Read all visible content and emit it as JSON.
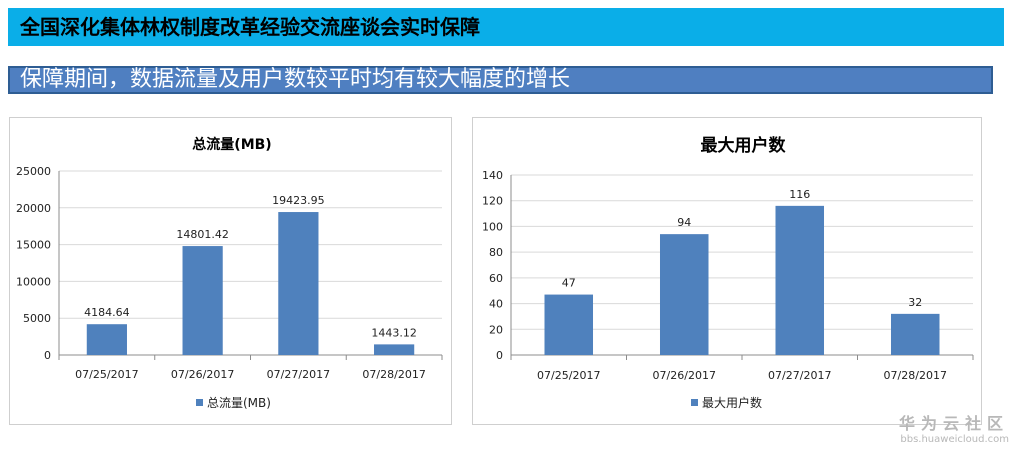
{
  "header": {
    "title": "全国深化集体林权制度改革经验交流座谈会实时保障",
    "subtitle": "保障期间，数据流量及用户数较平时均有较大幅度的增长"
  },
  "chart_data": [
    {
      "type": "bar",
      "title": "总流量(MB)",
      "categories": [
        "07/25/2017",
        "07/26/2017",
        "07/27/2017",
        "07/28/2017"
      ],
      "series": [
        {
          "name": "总流量(MB)",
          "values": [
            4184.64,
            14801.42,
            19423.95,
            1443.12
          ]
        }
      ],
      "data_labels": [
        "4184.64",
        "14801.42",
        "19423.95",
        "1443.12"
      ],
      "ylim": [
        0,
        25000
      ],
      "yticks": [
        0,
        5000,
        10000,
        15000,
        20000,
        25000
      ],
      "grid": true,
      "legend": "bottom",
      "color": "#4f81bd"
    },
    {
      "type": "bar",
      "title": "最大用户数",
      "categories": [
        "07/25/2017",
        "07/26/2017",
        "07/27/2017",
        "07/28/2017"
      ],
      "series": [
        {
          "name": "最大用户数",
          "values": [
            47,
            94,
            116,
            32
          ]
        }
      ],
      "data_labels": [
        "47",
        "94",
        "116",
        "32"
      ],
      "ylim": [
        0,
        140
      ],
      "yticks": [
        0,
        20,
        40,
        60,
        80,
        100,
        120,
        140
      ],
      "grid": true,
      "legend": "bottom",
      "color": "#4f81bd"
    }
  ],
  "watermark": {
    "brand": "华为云社区",
    "url": "bbs.huaweicloud.com"
  }
}
